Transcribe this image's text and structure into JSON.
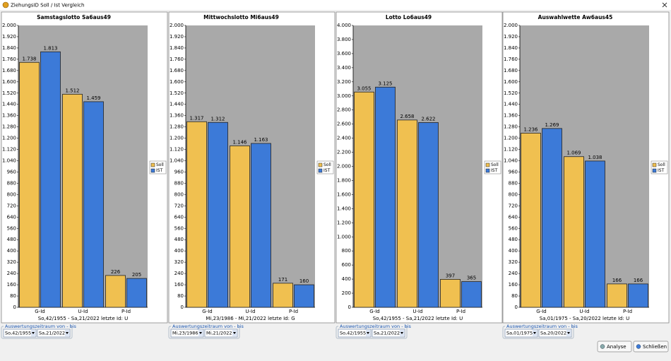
{
  "window": {
    "title": "ZiehungsID Soll / Ist Vergleich"
  },
  "chart_data": [
    {
      "type": "bar",
      "title": "Samstagslotto Sa6aus49",
      "categories": [
        "G-Id",
        "U-Id",
        "P-Id"
      ],
      "series": [
        {
          "name": "Soll",
          "color": "#f0c050",
          "values": [
            1738,
            1512,
            226
          ],
          "value_labels": [
            "1.738",
            "1.512",
            "226"
          ]
        },
        {
          "name": "IST",
          "color": "#3c7ad8",
          "values": [
            1813,
            1459,
            205
          ],
          "value_labels": [
            "1.813",
            "1.459",
            "205"
          ]
        }
      ],
      "ylim": [
        0,
        2000
      ],
      "yticks": [
        0,
        80,
        160,
        240,
        320,
        400,
        480,
        560,
        640,
        720,
        800,
        880,
        960,
        {
          "value": 1040,
          "label": "1.040"
        },
        {
          "value": 1120,
          "label": "1.120"
        },
        {
          "value": 1200,
          "label": "1.200"
        },
        {
          "value": 1280,
          "label": "1.280"
        },
        {
          "value": 1360,
          "label": "1.360"
        },
        {
          "value": 1440,
          "label": "1.440"
        },
        {
          "value": 1520,
          "label": "1.520"
        },
        {
          "value": 1600,
          "label": "1.600"
        },
        {
          "value": 1680,
          "label": "1.680"
        },
        {
          "value": 1760,
          "label": "1.760"
        },
        {
          "value": 1840,
          "label": "1.840"
        },
        {
          "value": 1920,
          "label": "1.920"
        },
        {
          "value": 2000,
          "label": "2.000"
        }
      ],
      "legend": "right",
      "footer": "So,42/1955 - Sa,21/2022   letzte Id: U"
    },
    {
      "type": "bar",
      "title": "Mittwochslotto Mi6aus49",
      "categories": [
        "G-Id",
        "U-Id",
        "P-Id"
      ],
      "series": [
        {
          "name": "Soll",
          "color": "#f0c050",
          "values": [
            1317,
            1146,
            171
          ],
          "value_labels": [
            "1.317",
            "1.146",
            "171"
          ]
        },
        {
          "name": "IST",
          "color": "#3c7ad8",
          "values": [
            1312,
            1163,
            160
          ],
          "value_labels": [
            "1.312",
            "1.163",
            "160"
          ]
        }
      ],
      "ylim": [
        0,
        2000
      ],
      "yticks": [
        0,
        80,
        160,
        240,
        320,
        400,
        480,
        560,
        640,
        720,
        800,
        880,
        960,
        {
          "value": 1040,
          "label": "1.040"
        },
        {
          "value": 1120,
          "label": "1.120"
        },
        {
          "value": 1200,
          "label": "1.200"
        },
        {
          "value": 1280,
          "label": "1.280"
        },
        {
          "value": 1360,
          "label": "1.360"
        },
        {
          "value": 1440,
          "label": "1.440"
        },
        {
          "value": 1520,
          "label": "1.520"
        },
        {
          "value": 1600,
          "label": "1.600"
        },
        {
          "value": 1680,
          "label": "1.680"
        },
        {
          "value": 1760,
          "label": "1.760"
        },
        {
          "value": 1840,
          "label": "1.840"
        },
        {
          "value": 1920,
          "label": "1.920"
        },
        {
          "value": 2000,
          "label": "2.000"
        }
      ],
      "legend": "right",
      "footer": "Mi,23/1986 - Mi,21/2022   letzte Id: G"
    },
    {
      "type": "bar",
      "title": "Lotto Lo6aus49",
      "categories": [
        "G-Id",
        "U-Id",
        "P-Id"
      ],
      "series": [
        {
          "name": "Soll",
          "color": "#f0c050",
          "values": [
            3055,
            2658,
            397
          ],
          "value_labels": [
            "3.055",
            "2.658",
            "397"
          ]
        },
        {
          "name": "IST",
          "color": "#3c7ad8",
          "values": [
            3125,
            2622,
            365
          ],
          "value_labels": [
            "3.125",
            "2.622",
            "365"
          ]
        }
      ],
      "ylim": [
        0,
        4000
      ],
      "yticks": [
        0,
        200,
        400,
        600,
        800,
        {
          "value": 1000,
          "label": "1.000"
        },
        {
          "value": 1200,
          "label": "1.200"
        },
        {
          "value": 1400,
          "label": "1.400"
        },
        {
          "value": 1600,
          "label": "1.600"
        },
        {
          "value": 1800,
          "label": "1.800"
        },
        {
          "value": 2000,
          "label": "2.000"
        },
        {
          "value": 2200,
          "label": "2.200"
        },
        {
          "value": 2400,
          "label": "2.400"
        },
        {
          "value": 2600,
          "label": "2.600"
        },
        {
          "value": 2800,
          "label": "2.800"
        },
        {
          "value": 3000,
          "label": "3.000"
        },
        {
          "value": 3200,
          "label": "3.200"
        },
        {
          "value": 3400,
          "label": "3.400"
        },
        {
          "value": 3600,
          "label": "3.600"
        },
        {
          "value": 3800,
          "label": "3.800"
        },
        {
          "value": 4000,
          "label": "4.000"
        }
      ],
      "legend": "right",
      "footer": "So,42/1955 - Sa,21/2022   letzte Id: U"
    },
    {
      "type": "bar",
      "title": "Auswahlwette Aw6aus45",
      "categories": [
        "G-Id",
        "U-Id",
        "P-Id"
      ],
      "series": [
        {
          "name": "Soll",
          "color": "#f0c050",
          "values": [
            1236,
            1069,
            166
          ],
          "value_labels": [
            "1.236",
            "1.069",
            "166"
          ]
        },
        {
          "name": "IST",
          "color": "#3c7ad8",
          "values": [
            1269,
            1038,
            166
          ],
          "value_labels": [
            "1.269",
            "1.038",
            "166"
          ]
        }
      ],
      "ylim": [
        0,
        2000
      ],
      "yticks": [
        0,
        80,
        160,
        240,
        320,
        400,
        480,
        560,
        640,
        720,
        800,
        880,
        960,
        {
          "value": 1040,
          "label": "1.040"
        },
        {
          "value": 1120,
          "label": "1.120"
        },
        {
          "value": 1200,
          "label": "1.200"
        },
        {
          "value": 1280,
          "label": "1.280"
        },
        {
          "value": 1360,
          "label": "1.360"
        },
        {
          "value": 1440,
          "label": "1.440"
        },
        {
          "value": 1520,
          "label": "1.520"
        },
        {
          "value": 1600,
          "label": "1.600"
        },
        {
          "value": 1680,
          "label": "1.680"
        },
        {
          "value": 1760,
          "label": "1.760"
        },
        {
          "value": 1840,
          "label": "1.840"
        },
        {
          "value": 1920,
          "label": "1.920"
        },
        {
          "value": 2000,
          "label": "2.000"
        }
      ],
      "legend": "right",
      "footer": "Sa,01/1975 - Sa,20/2022   letzte Id: U"
    }
  ],
  "ranges": [
    {
      "label": "Auswertungszeitraum von - bis",
      "from": "So,42/1955",
      "to": "Sa,21/2022"
    },
    {
      "label": "Auswertungszeitraum von - bis",
      "from": "Mi,23/1986",
      "to": "Mi,21/2022"
    },
    {
      "label": "Auswertungszeitraum von - bis",
      "from": "So,42/1955",
      "to": "Sa,21/2022"
    },
    {
      "label": "Auswertungszeitraum von - bis",
      "from": "Sa,01/1975",
      "to": "Sa,20/2022"
    }
  ],
  "buttons": [
    "Analyse",
    "Schließen"
  ]
}
